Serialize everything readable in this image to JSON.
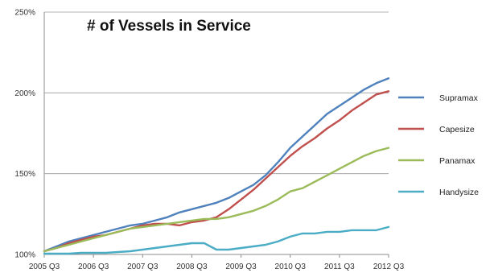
{
  "chart_data": {
    "type": "line",
    "title": "# of Vessels in Service",
    "xlabel": "",
    "ylabel": "",
    "ylim": [
      100,
      250
    ],
    "yticks": [
      "100%",
      "150%",
      "200%",
      "250%"
    ],
    "ytick_values": [
      100,
      150,
      200,
      250
    ],
    "xticks": [
      "2005 Q3",
      "2006 Q3",
      "2007 Q3",
      "2008 Q3",
      "2009 Q3",
      "2010 Q3",
      "2011 Q3",
      "2012 Q3"
    ],
    "x": [
      "2005 Q3",
      "2005 Q4",
      "2006 Q1",
      "2006 Q2",
      "2006 Q3",
      "2006 Q4",
      "2007 Q1",
      "2007 Q2",
      "2007 Q3",
      "2007 Q4",
      "2008 Q1",
      "2008 Q2",
      "2008 Q3",
      "2008 Q4",
      "2009 Q1",
      "2009 Q2",
      "2009 Q3",
      "2009 Q4",
      "2010 Q1",
      "2010 Q2",
      "2010 Q3",
      "2010 Q4",
      "2011 Q1",
      "2011 Q2",
      "2011 Q3",
      "2011 Q4",
      "2012 Q1",
      "2012 Q2",
      "2012 Q3"
    ],
    "grid": "horizontal",
    "legend_position": "right",
    "series": [
      {
        "name": "Supramax",
        "color": "#4f81bd",
        "values": [
          102,
          105,
          108,
          110,
          112,
          114,
          116,
          118,
          119,
          121,
          123,
          126,
          128,
          130,
          132,
          135,
          139,
          143,
          149,
          157,
          166,
          173,
          180,
          187,
          192,
          197,
          202,
          206,
          209
        ]
      },
      {
        "name": "Capesize",
        "color": "#c0504d",
        "values": [
          102,
          104,
          107,
          109,
          111,
          112,
          114,
          116,
          118,
          119,
          119,
          118,
          120,
          121,
          123,
          128,
          134,
          140,
          147,
          154,
          161,
          167,
          172,
          178,
          183,
          189,
          194,
          199,
          201
        ]
      },
      {
        "name": "Panamax",
        "color": "#9bbb59",
        "values": [
          102,
          104,
          106,
          108,
          110,
          112,
          114,
          116,
          117,
          118,
          119,
          120,
          121,
          122,
          122,
          123,
          125,
          127,
          130,
          134,
          139,
          141,
          145,
          149,
          153,
          157,
          161,
          164,
          166
        ]
      },
      {
        "name": "Handysize",
        "color": "#4bacc6",
        "values": [
          100.5,
          100.5,
          100.5,
          101,
          101,
          101,
          101.5,
          102,
          103,
          104,
          105,
          106,
          107,
          107,
          103,
          103,
          104,
          105,
          106,
          108,
          111,
          113,
          113,
          114,
          114,
          115,
          115,
          115,
          117
        ]
      }
    ]
  }
}
